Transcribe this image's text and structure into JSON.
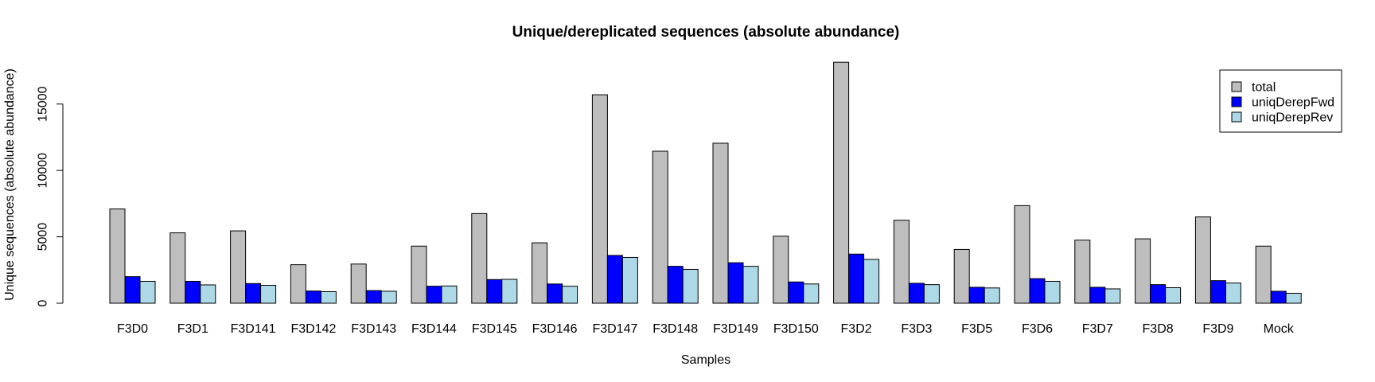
{
  "chart_data": {
    "type": "bar",
    "title": "Unique/dereplicated sequences (absolute abundance)",
    "xlabel": "Samples",
    "ylabel": "Unique sequences (absolute abundance)",
    "ylim": [
      0,
      18200
    ],
    "yticks": [
      0,
      5000,
      10000,
      15000
    ],
    "legend_position": "top-right",
    "grid": false,
    "categories": [
      "F3D0",
      "F3D1",
      "F3D141",
      "F3D142",
      "F3D143",
      "F3D144",
      "F3D145",
      "F3D146",
      "F3D147",
      "F3D148",
      "F3D149",
      "F3D150",
      "F3D2",
      "F3D3",
      "F3D5",
      "F3D6",
      "F3D7",
      "F3D8",
      "F3D9",
      "Mock"
    ],
    "series": [
      {
        "name": "total",
        "color": "#bebebe",
        "values": [
          7100,
          5300,
          5450,
          2900,
          2950,
          4300,
          6750,
          4550,
          15700,
          11450,
          12050,
          5050,
          18150,
          6250,
          4050,
          7350,
          4750,
          4850,
          6500,
          4300
        ]
      },
      {
        "name": "uniqDerepFwd",
        "color": "#0000ff",
        "values": [
          2000,
          1650,
          1480,
          920,
          950,
          1280,
          1780,
          1450,
          3600,
          2780,
          3050,
          1600,
          3700,
          1500,
          1200,
          1850,
          1200,
          1400,
          1700,
          900
        ]
      },
      {
        "name": "uniqDerepRev",
        "color": "#add8e6",
        "values": [
          1650,
          1380,
          1350,
          870,
          900,
          1300,
          1800,
          1280,
          3450,
          2550,
          2780,
          1450,
          3300,
          1400,
          1150,
          1650,
          1080,
          1170,
          1520,
          750
        ]
      }
    ]
  }
}
